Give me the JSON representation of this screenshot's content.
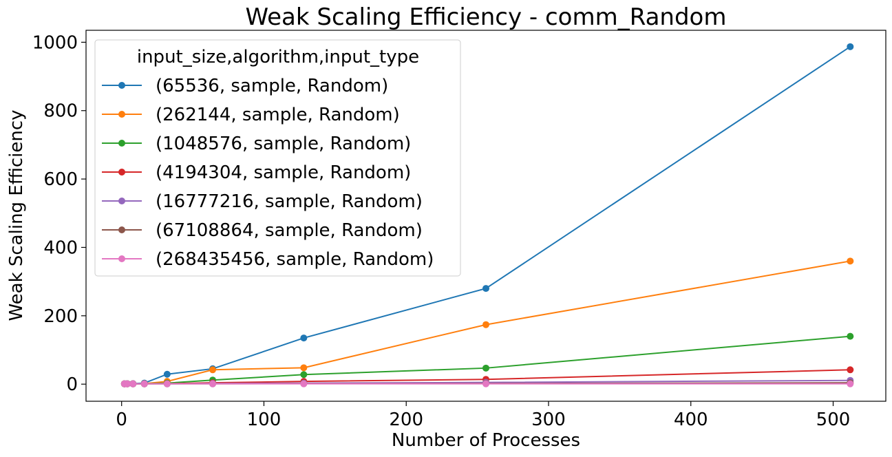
{
  "chart_data": {
    "type": "line",
    "title": "Weak Scaling Efficiency - comm_Random",
    "xlabel": "Number of Processes",
    "ylabel": "Weak Scaling Efficiency",
    "xlim": [
      -25,
      537
    ],
    "ylim": [
      -50,
      1035
    ],
    "xticks": [
      0,
      100,
      200,
      300,
      400,
      500
    ],
    "yticks": [
      0,
      200,
      400,
      600,
      800,
      1000
    ],
    "grid": false,
    "legend": {
      "title": "input_size,algorithm,input_type",
      "placement": "top-left"
    },
    "x": [
      2,
      4,
      8,
      16,
      32,
      64,
      128,
      256,
      512
    ],
    "series": [
      {
        "name": "(65536, sample, Random)",
        "color": "#1f77b4",
        "values": [
          1,
          1.4,
          1.5,
          3.2,
          29,
          45,
          135,
          280,
          987
        ]
      },
      {
        "name": "(262144, sample, Random)",
        "color": "#ff7f0e",
        "values": [
          1,
          1.1,
          1.2,
          1.5,
          8,
          42,
          48,
          174,
          360
        ]
      },
      {
        "name": "(1048576, sample, Random)",
        "color": "#2ca02c",
        "values": [
          1,
          1,
          1,
          1,
          3,
          12,
          28,
          47,
          140
        ]
      },
      {
        "name": "(4194304, sample, Random)",
        "color": "#d62728",
        "values": [
          1,
          1,
          1,
          1,
          1.5,
          4,
          8,
          14,
          42
        ]
      },
      {
        "name": "(16777216, sample, Random)",
        "color": "#9467bd",
        "values": [
          1,
          1,
          1,
          1,
          1,
          2,
          3,
          5,
          11
        ]
      },
      {
        "name": "(67108864, sample, Random)",
        "color": "#8c564b",
        "values": [
          1,
          1,
          1,
          1,
          1,
          1,
          1.5,
          2,
          4
        ]
      },
      {
        "name": "(268435456, sample, Random)",
        "color": "#e377c2",
        "values": [
          1,
          1,
          1,
          1,
          1,
          1,
          1,
          1,
          1
        ]
      }
    ]
  }
}
